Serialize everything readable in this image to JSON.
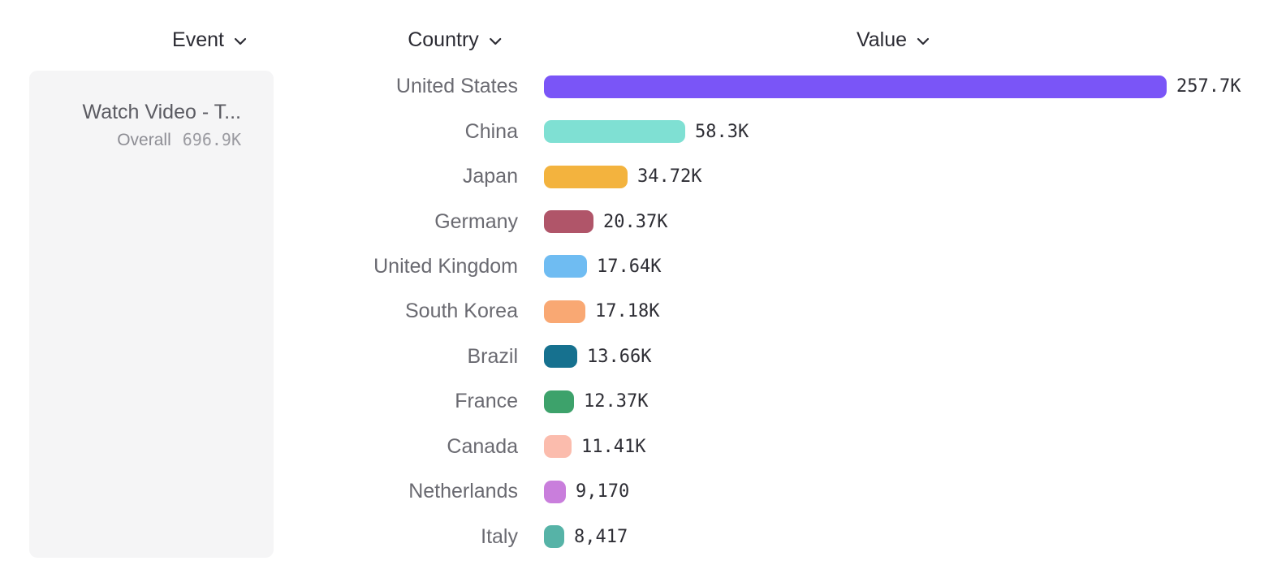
{
  "columns": {
    "event_label": "Event",
    "country_label": "Country",
    "value_label": "Value"
  },
  "event_card": {
    "title": "Watch Video - T...",
    "metric_label": "Overall",
    "metric_value": "696.9K"
  },
  "chart_data": {
    "type": "bar",
    "orientation": "horizontal",
    "title": "",
    "xlabel": "Value",
    "ylabel": "Country",
    "grid": false,
    "legend": false,
    "xlim": [
      0,
      257700
    ],
    "categories": [
      "United States",
      "China",
      "Japan",
      "Germany",
      "United Kingdom",
      "South Korea",
      "Brazil",
      "France",
      "Canada",
      "Netherlands",
      "Italy"
    ],
    "values": [
      257700,
      58300,
      34720,
      20370,
      17640,
      17180,
      13660,
      12370,
      11410,
      9170,
      8417
    ],
    "value_labels": [
      "257.7K",
      "58.3K",
      "34.72K",
      "20.37K",
      "17.64K",
      "17.18K",
      "13.66K",
      "12.37K",
      "11.41K",
      "9,170",
      "8,417"
    ],
    "colors": [
      "#7a55f7",
      "#7fe0d3",
      "#f3b33e",
      "#b05569",
      "#6fbcf2",
      "#f9a873",
      "#16718f",
      "#3da26b",
      "#fbbcad",
      "#c97edc",
      "#56b3a7"
    ]
  },
  "ui_colors": {
    "header_text": "#2b2b33",
    "country_text": "#6a6a71",
    "value_text": "#2e2e35",
    "card_bg": "#f5f5f6"
  }
}
